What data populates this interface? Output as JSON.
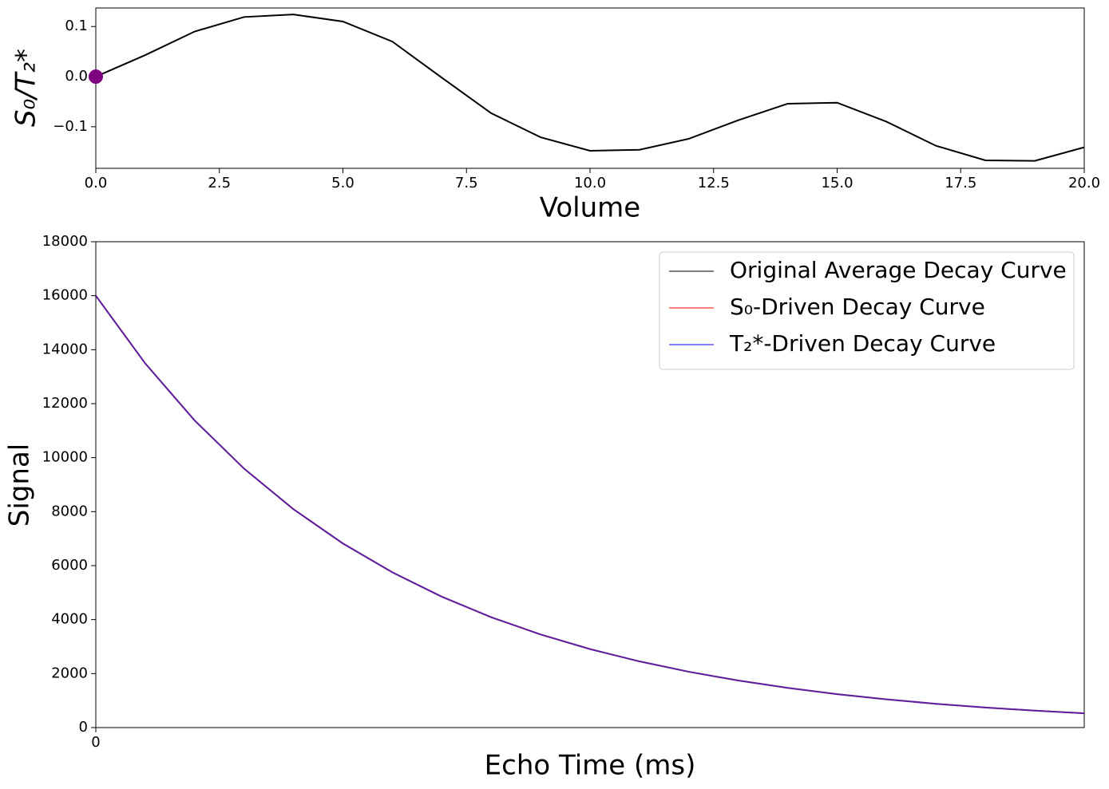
{
  "chart_data": [
    {
      "type": "line",
      "x": [
        0,
        1,
        2,
        3,
        4,
        5,
        6,
        7,
        8,
        9,
        10,
        11,
        12,
        13,
        14,
        15,
        16,
        17,
        18,
        19,
        20
      ],
      "series": [
        {
          "color": "#000000",
          "values": [
            0.0,
            0.043,
            0.09,
            0.119,
            0.124,
            0.11,
            0.07,
            -0.002,
            -0.073,
            -0.121,
            -0.148,
            -0.146,
            -0.124,
            -0.087,
            -0.054,
            -0.052,
            -0.09,
            -0.138,
            -0.167,
            -0.168,
            -0.141
          ]
        }
      ],
      "highlight": {
        "x": 0,
        "y": 0,
        "color": "#800080"
      },
      "x_label": "Volume",
      "y_label": "S₀/T₂*",
      "xlim": [
        0,
        20
      ],
      "ylim": [
        -0.183,
        0.137
      ],
      "xticks": [
        {
          "value": 0,
          "label": "0.0"
        },
        2.5,
        {
          "value": 5,
          "label": "5.0"
        },
        7.5,
        {
          "value": 10,
          "label": "10.0"
        },
        12.5,
        {
          "value": 15,
          "label": "15.0"
        },
        17.5,
        {
          "value": 20,
          "label": "20.0"
        }
      ],
      "yticks": [
        {
          "value": -0.1,
          "label": "−0.1"
        },
        {
          "value": 0,
          "label": "0.0"
        },
        0.1
      ],
      "grid": false
    },
    {
      "type": "line",
      "x": [
        0,
        5,
        10,
        15,
        20,
        25,
        30,
        35,
        40,
        45,
        50,
        55,
        60,
        65,
        70,
        75,
        80,
        85,
        90,
        95,
        100
      ],
      "series": [
        {
          "name": "Original Average Decay Curve",
          "color": "rgba(0,0,0,0.5)",
          "values": [
            16000,
            13491,
            11377,
            9593,
            8089,
            6821,
            5751,
            4850,
            4089,
            3448,
            2908,
            2452,
            2067,
            1743,
            1470,
            1239,
            1045,
            881,
            743,
            627,
            529
          ]
        },
        {
          "name": "S₀-Driven Decay Curve",
          "color": "rgba(255,0,0,0.5)",
          "values": [
            16000,
            13491,
            11377,
            9593,
            8089,
            6821,
            5751,
            4850,
            4089,
            3448,
            2908,
            2452,
            2067,
            1743,
            1470,
            1239,
            1045,
            881,
            743,
            627,
            529
          ]
        },
        {
          "name": "T₂*-Driven Decay Curve",
          "color": "rgba(0,0,255,0.5)",
          "values": [
            16000,
            13491,
            11377,
            9593,
            8089,
            6821,
            5751,
            4850,
            4089,
            3448,
            2908,
            2452,
            2067,
            1743,
            1470,
            1239,
            1045,
            881,
            743,
            627,
            529
          ]
        }
      ],
      "x_label": "Echo Time (ms)",
      "y_label": "Signal",
      "xlim": [
        0,
        100
      ],
      "ylim": [
        0,
        18000
      ],
      "xticks": [
        0
      ],
      "yticks": [
        0,
        2000,
        4000,
        6000,
        8000,
        10000,
        12000,
        14000,
        16000,
        18000
      ],
      "legend": "upper right",
      "grid": false
    }
  ]
}
